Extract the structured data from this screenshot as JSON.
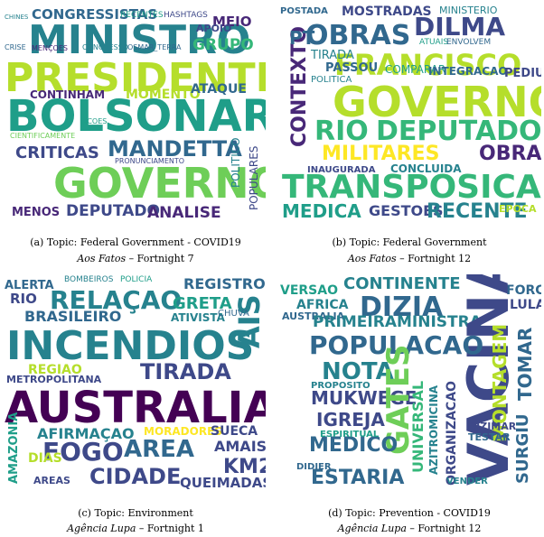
{
  "palette": [
    "#440154",
    "#482878",
    "#3e4989",
    "#31688e",
    "#26828e",
    "#1f9e89",
    "#35b779",
    "#6ece58",
    "#b5de2b",
    "#fde725"
  ],
  "panels": [
    {
      "id": "a",
      "caption": "(a) Topic: Federal Government - COVID19",
      "source_italic": "Aos Fatos",
      "source_rest": "– Fortnight 7",
      "words": [
        {
          "t": "CONGRESSISTAS",
          "c": 3
        },
        {
          "t": "RECENTES",
          "c": 5
        },
        {
          "t": "HASHTAGS",
          "c": 2
        },
        {
          "t": "MINISTRO",
          "c": 4
        },
        {
          "t": "PRESIDENTE",
          "c": 8
        },
        {
          "t": "MEIO",
          "c": 1
        },
        {
          "t": "GRUPO",
          "c": 6
        },
        {
          "t": "APOIO",
          "c": 2
        },
        {
          "t": "BOLSONARO",
          "c": 5
        },
        {
          "t": "CONTINHAM",
          "c": 1
        },
        {
          "t": "MOMENTO",
          "c": 8
        },
        {
          "t": "ATAQUE",
          "c": 3
        },
        {
          "t": "CRITICAS",
          "c": 2
        },
        {
          "t": "MANDETTA",
          "c": 3
        },
        {
          "t": "GOVERNO",
          "c": 7
        },
        {
          "t": "MENOS",
          "c": 1
        },
        {
          "t": "DEPUTADO",
          "c": 2
        },
        {
          "t": "ANALISE",
          "c": 1
        },
        {
          "t": "POLITICO",
          "c": 4
        },
        {
          "t": "POPULARES",
          "c": 2
        },
        {
          "t": "CHINES",
          "c": 4
        },
        {
          "t": "CRISE",
          "c": 3
        },
        {
          "t": "MENÇOES",
          "c": 1
        },
        {
          "t": "CONGRESSO",
          "c": 4
        },
        {
          "t": "OSMAR_TERRA",
          "c": 3
        },
        {
          "t": "PRONUNCIAMENTO",
          "c": 2
        },
        {
          "t": "ACOES",
          "c": 5
        },
        {
          "t": "CIENTIFICAMENTE",
          "c": 7
        }
      ]
    },
    {
      "id": "b",
      "caption": "(b) Topic: Federal Government",
      "source_italic": "Aos Fatos",
      "source_rest": "– Fortnight 12",
      "words": [
        {
          "t": "POSTADA",
          "c": 3
        },
        {
          "t": "MOSTRADAS",
          "c": 2
        },
        {
          "t": "MINISTERIO",
          "c": 4
        },
        {
          "t": "OBRAS",
          "c": 3
        },
        {
          "t": "DILMA",
          "c": 2
        },
        {
          "t": "FRANCISCO",
          "c": 8
        },
        {
          "t": "CONTEXTO",
          "c": 1
        },
        {
          "t": "PT",
          "c": 3
        },
        {
          "t": "TIRADA",
          "c": 4
        },
        {
          "t": "PASSOU",
          "c": 3
        },
        {
          "t": "COMPARAR",
          "c": 5
        },
        {
          "t": "INTEGRACAO",
          "c": 3
        },
        {
          "t": "PEDIU",
          "c": 2
        },
        {
          "t": "GOVERNO",
          "c": 8
        },
        {
          "t": "RIO",
          "c": 6
        },
        {
          "t": "DEPUTADO",
          "c": 6
        },
        {
          "t": "MILITARES",
          "c": 9
        },
        {
          "t": "OBRA",
          "c": 1
        },
        {
          "t": "INAUGURADA",
          "c": 2
        },
        {
          "t": "CONCLUIDA",
          "c": 4
        },
        {
          "t": "TRANSPOSICAO",
          "c": 6
        },
        {
          "t": "MEDICA",
          "c": 5
        },
        {
          "t": "GESTOES",
          "c": 2
        },
        {
          "t": "RECENTE",
          "c": 4
        },
        {
          "t": "EPOCA",
          "c": 8
        },
        {
          "t": "POLITICA",
          "c": 4
        },
        {
          "t": "ATUAIS",
          "c": 5
        },
        {
          "t": "ENVOLVEM",
          "c": 3
        }
      ]
    },
    {
      "id": "c",
      "caption": "(c) Topic: Environment",
      "source_italic": "Agência Lupa",
      "source_rest": "– Fortnight 1",
      "words": [
        {
          "t": "BOMBEIROS",
          "c": 4
        },
        {
          "t": "POLICIA",
          "c": 5
        },
        {
          "t": "REGISTRO",
          "c": 3
        },
        {
          "t": "ALERTA",
          "c": 3
        },
        {
          "t": "RELAÇAO",
          "c": 4
        },
        {
          "t": "GRETA",
          "c": 5
        },
        {
          "t": "RIO",
          "c": 2
        },
        {
          "t": "BRASILEIRO",
          "c": 3
        },
        {
          "t": "ATIVISTA",
          "c": 4
        },
        {
          "t": "AIS",
          "c": 4
        },
        {
          "t": "INCENDIOS",
          "c": 4
        },
        {
          "t": "TIRADA",
          "c": 2
        },
        {
          "t": "REGIAO",
          "c": 8
        },
        {
          "t": "METROPOLITANA",
          "c": 2
        },
        {
          "t": "AUSTRALIA",
          "c": 0
        },
        {
          "t": "AFIRMAÇAO",
          "c": 4
        },
        {
          "t": "MORADORES",
          "c": 9
        },
        {
          "t": "SUECA",
          "c": 2
        },
        {
          "t": "FOGO",
          "c": 2
        },
        {
          "t": "AREA",
          "c": 3
        },
        {
          "t": "AMAIS",
          "c": 2
        },
        {
          "t": "KM2",
          "c": 2
        },
        {
          "t": "CIDADE",
          "c": 2
        },
        {
          "t": "QUEIMADAS",
          "c": 2
        },
        {
          "t": "AMAZONIA",
          "c": 5
        },
        {
          "t": "DIAS",
          "c": 8
        },
        {
          "t": "AREAS",
          "c": 2
        },
        {
          "t": "CHUVA",
          "c": 3
        }
      ]
    },
    {
      "id": "d",
      "caption": "(d) Topic: Prevention - COVID19",
      "source_italic": "Agência Lupa",
      "source_rest": "– Fortnight 12",
      "words": [
        {
          "t": "VERSAO",
          "c": 5
        },
        {
          "t": "CONTINENTE",
          "c": 4
        },
        {
          "t": "AFRICA",
          "c": 4
        },
        {
          "t": "DIZIA",
          "c": 3
        },
        {
          "t": "FORCA",
          "c": 3
        },
        {
          "t": "LULA",
          "c": 2
        },
        {
          "t": "AUSTRALIA",
          "c": 3
        },
        {
          "t": "PRIMEIRAMINISTRA",
          "c": 4
        },
        {
          "t": "VACINA",
          "c": 2
        },
        {
          "t": "POPULACAO",
          "c": 3
        },
        {
          "t": "NOTA",
          "c": 4
        },
        {
          "t": "MONTAGEM",
          "c": 8
        },
        {
          "t": "TOMAR",
          "c": 3
        },
        {
          "t": "MUKWEGE",
          "c": 2
        },
        {
          "t": "GATES",
          "c": 7
        },
        {
          "t": "UNIVERSAL",
          "c": 6
        },
        {
          "t": "IGREJA",
          "c": 2
        },
        {
          "t": "AZITROMICINA",
          "c": 4
        },
        {
          "t": "SURGIU",
          "c": 3
        },
        {
          "t": "MEDICO",
          "c": 3
        },
        {
          "t": "ORGANIZACAO",
          "c": 2
        },
        {
          "t": "ESTARIA",
          "c": 3
        },
        {
          "t": "DIZIMAR",
          "c": 2
        },
        {
          "t": "TESTAR",
          "c": 3
        },
        {
          "t": "PROPOSITO",
          "c": 4
        },
        {
          "t": "ESPIRITUAL",
          "c": 5
        },
        {
          "t": "DIDIER",
          "c": 3
        },
        {
          "t": "VENDER",
          "c": 4
        }
      ]
    }
  ]
}
